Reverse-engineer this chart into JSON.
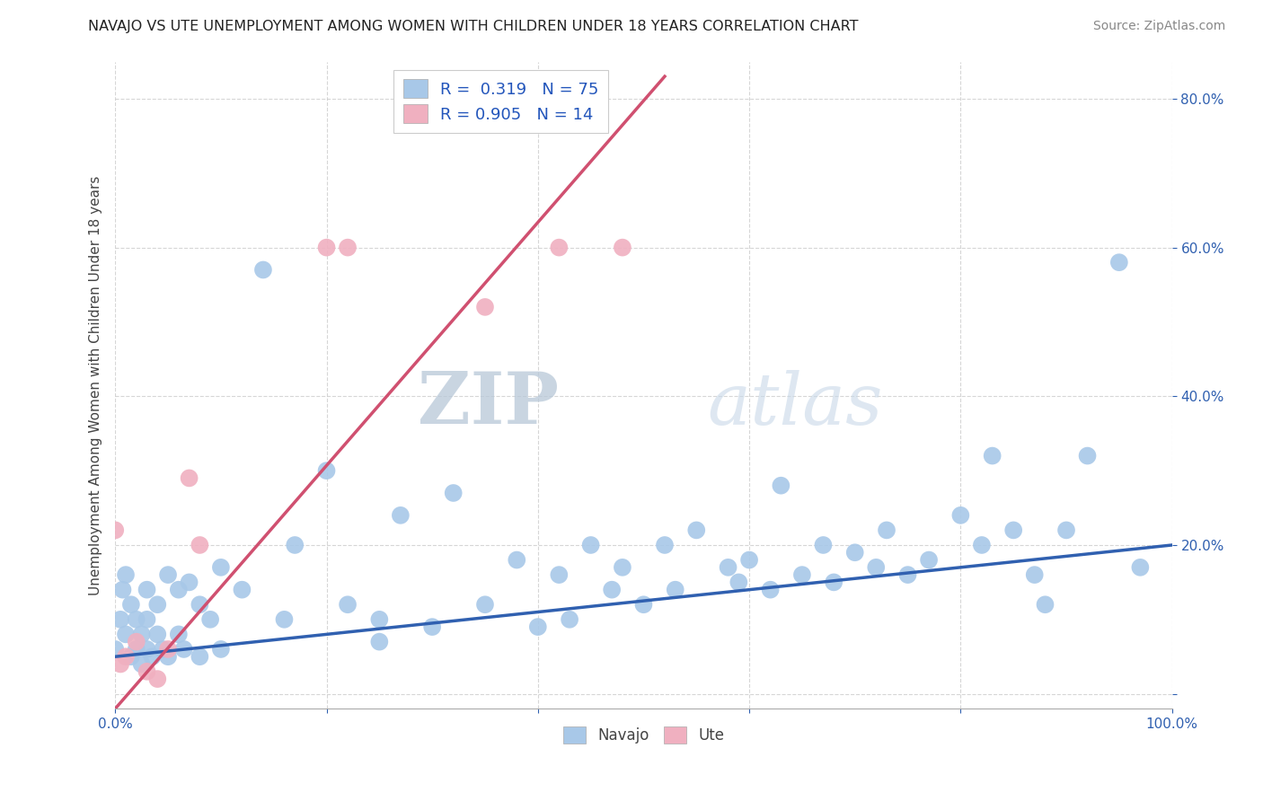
{
  "title": "NAVAJO VS UTE UNEMPLOYMENT AMONG WOMEN WITH CHILDREN UNDER 18 YEARS CORRELATION CHART",
  "source": "Source: ZipAtlas.com",
  "ylabel": "Unemployment Among Women with Children Under 18 years",
  "xlim": [
    0,
    1.0
  ],
  "ylim": [
    -0.02,
    0.85
  ],
  "xticks": [
    0.0,
    0.2,
    0.4,
    0.6,
    0.8,
    1.0
  ],
  "yticks": [
    0.0,
    0.2,
    0.4,
    0.6,
    0.8
  ],
  "xticklabels": [
    "0.0%",
    "",
    "",
    "",
    "",
    "100.0%"
  ],
  "yticklabels_right": [
    "",
    "20.0%",
    "40.0%",
    "60.0%",
    "80.0%"
  ],
  "navajo_R": 0.319,
  "navajo_N": 75,
  "ute_R": 0.905,
  "ute_N": 14,
  "navajo_color": "#A8C8E8",
  "ute_color": "#F0B0C0",
  "navajo_line_color": "#3060B0",
  "ute_line_color": "#D05070",
  "legend_color": "#2255BB",
  "background_color": "#FFFFFF",
  "grid_color": "#CCCCCC",
  "watermark_zip": "ZIP",
  "watermark_atlas": "atlas",
  "navajo_x": [
    0.0,
    0.005,
    0.007,
    0.01,
    0.01,
    0.015,
    0.015,
    0.02,
    0.02,
    0.025,
    0.025,
    0.03,
    0.03,
    0.03,
    0.035,
    0.04,
    0.04,
    0.045,
    0.05,
    0.05,
    0.06,
    0.06,
    0.065,
    0.07,
    0.08,
    0.08,
    0.09,
    0.1,
    0.1,
    0.12,
    0.14,
    0.16,
    0.17,
    0.2,
    0.22,
    0.25,
    0.25,
    0.27,
    0.3,
    0.32,
    0.35,
    0.38,
    0.4,
    0.42,
    0.43,
    0.45,
    0.47,
    0.48,
    0.5,
    0.52,
    0.53,
    0.55,
    0.58,
    0.59,
    0.6,
    0.62,
    0.63,
    0.65,
    0.67,
    0.68,
    0.7,
    0.72,
    0.73,
    0.75,
    0.77,
    0.8,
    0.82,
    0.83,
    0.85,
    0.87,
    0.88,
    0.9,
    0.92,
    0.95,
    0.97
  ],
  "navajo_y": [
    0.06,
    0.1,
    0.14,
    0.08,
    0.16,
    0.05,
    0.12,
    0.06,
    0.1,
    0.04,
    0.08,
    0.06,
    0.1,
    0.14,
    0.05,
    0.08,
    0.12,
    0.06,
    0.16,
    0.05,
    0.14,
    0.08,
    0.06,
    0.15,
    0.12,
    0.05,
    0.1,
    0.17,
    0.06,
    0.14,
    0.57,
    0.1,
    0.2,
    0.3,
    0.12,
    0.1,
    0.07,
    0.24,
    0.09,
    0.27,
    0.12,
    0.18,
    0.09,
    0.16,
    0.1,
    0.2,
    0.14,
    0.17,
    0.12,
    0.2,
    0.14,
    0.22,
    0.17,
    0.15,
    0.18,
    0.14,
    0.28,
    0.16,
    0.2,
    0.15,
    0.19,
    0.17,
    0.22,
    0.16,
    0.18,
    0.24,
    0.2,
    0.32,
    0.22,
    0.16,
    0.12,
    0.22,
    0.32,
    0.58,
    0.17
  ],
  "ute_x": [
    0.0,
    0.005,
    0.01,
    0.02,
    0.03,
    0.04,
    0.05,
    0.07,
    0.08,
    0.2,
    0.22,
    0.35,
    0.42,
    0.48
  ],
  "ute_y": [
    0.22,
    0.04,
    0.05,
    0.07,
    0.03,
    0.02,
    0.06,
    0.29,
    0.2,
    0.6,
    0.6,
    0.52,
    0.6,
    0.6
  ],
  "navajo_line_x0": 0.0,
  "navajo_line_x1": 1.0,
  "navajo_line_y0": 0.05,
  "navajo_line_y1": 0.2,
  "ute_line_x0": 0.0,
  "ute_line_x1": 0.52,
  "ute_line_y0": -0.02,
  "ute_line_y1": 0.83
}
